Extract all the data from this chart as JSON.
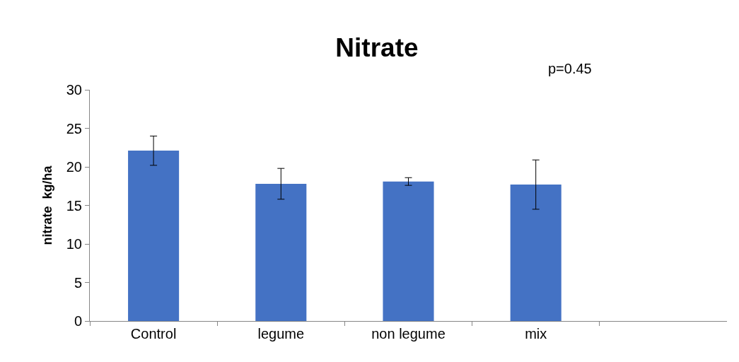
{
  "chart_data": {
    "type": "bar",
    "title": "Nitrate",
    "ylabel": "nitrate  kg/ha",
    "categories": [
      "Control",
      "legume",
      "non legume",
      "mix",
      null
    ],
    "values": [
      22.1,
      17.8,
      18.1,
      17.7,
      null
    ],
    "errors": [
      1.9,
      2.0,
      0.5,
      3.2,
      null
    ],
    "color": "#4472c4",
    "ylim": [
      0,
      30
    ],
    "yticks": [
      0,
      5,
      10,
      15,
      20,
      25,
      30
    ],
    "annotations": [
      "p=0.45"
    ]
  }
}
